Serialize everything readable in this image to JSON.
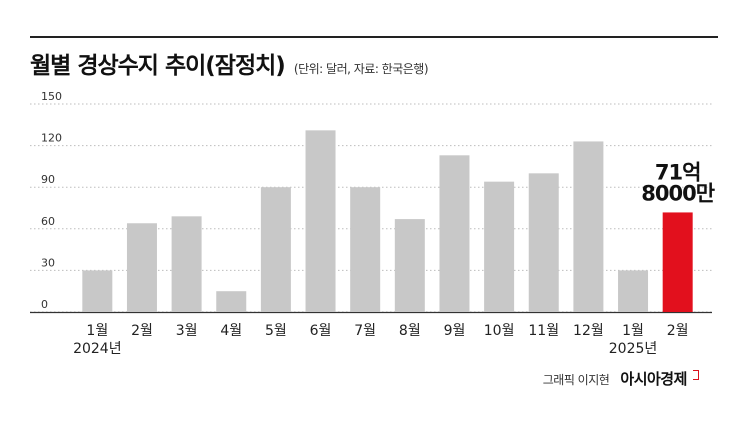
{
  "header": {
    "title": "월별 경상수지 추이(잠정치)",
    "subtitle": "(단위: 달러, 자료: 한국은행)"
  },
  "footer": {
    "credit": "그래픽 이지현",
    "brand": "아시아경제"
  },
  "chart_data": {
    "type": "bar",
    "categories": [
      "1월",
      "2월",
      "3월",
      "4월",
      "5월",
      "6월",
      "7월",
      "8월",
      "9월",
      "10월",
      "11월",
      "12월",
      "1월",
      "2월"
    ],
    "year_labels": [
      "2024년",
      "",
      "",
      "",
      "",
      "",
      "",
      "",
      "",
      "",
      "",
      "",
      "2025년",
      ""
    ],
    "values": [
      30,
      64,
      69,
      15,
      90,
      131,
      90,
      67,
      113,
      94,
      100,
      123,
      30,
      71.8
    ],
    "ylim": [
      0,
      150
    ],
    "yticks": [
      0,
      30,
      60,
      90,
      120,
      150
    ],
    "grid": true,
    "highlight_index": 13,
    "annotation": [
      "71억",
      "8000만"
    ],
    "colors": {
      "bar": "#c8c8c8",
      "highlight": "#e2101d",
      "grid": "#bdbdbd"
    }
  }
}
